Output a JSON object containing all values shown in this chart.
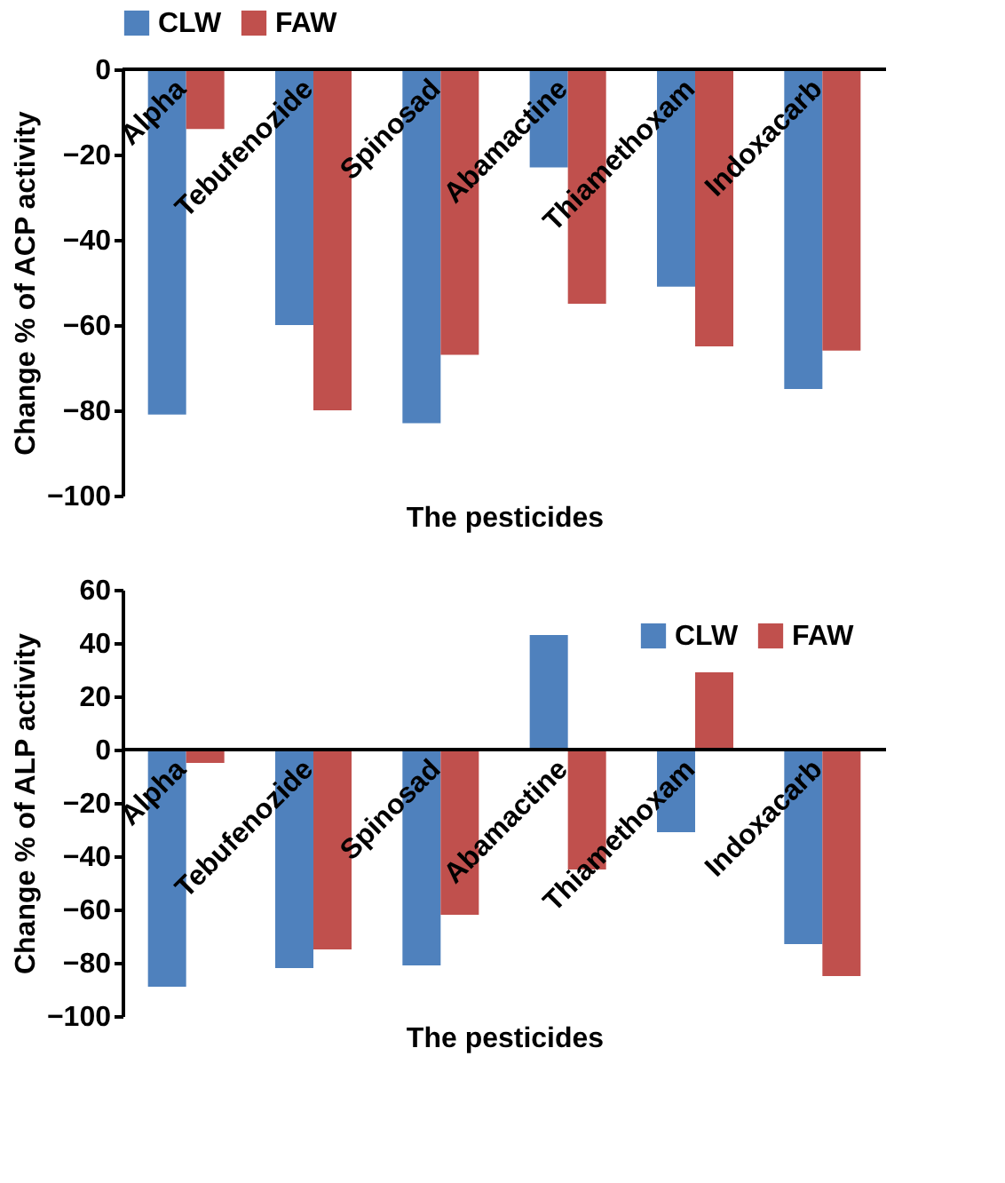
{
  "chart_data": [
    {
      "type": "bar",
      "xlabel": "The pesticides",
      "ylabel": "Change % of ACP activity",
      "categories": [
        "Alpha",
        "Tebufenozide",
        "Spinosad",
        "Abamactine",
        "Thiamethoxam",
        "Indoxacarb"
      ],
      "series": [
        {
          "name": "CLW",
          "color": "#4f81bd",
          "values": [
            -81,
            -60,
            -83,
            -23,
            -51,
            -75
          ]
        },
        {
          "name": "FAW",
          "color": "#c0504d",
          "values": [
            -14,
            -80,
            -67,
            -55,
            -65,
            -66
          ]
        }
      ],
      "ylim": [
        -100,
        0
      ],
      "yticks": [
        -100,
        -80,
        -60,
        -40,
        -20,
        0
      ],
      "legend": "top"
    },
    {
      "type": "bar",
      "xlabel": "The pesticides",
      "ylabel": "Change % of ALP activity",
      "categories": [
        "Alpha",
        "Tebufenozide",
        "Spinosad",
        "Abamactine",
        "Thiamethoxam",
        "Indoxacarb"
      ],
      "series": [
        {
          "name": "CLW",
          "color": "#4f81bd",
          "values": [
            -89,
            -82,
            -81,
            43,
            -31,
            -73
          ]
        },
        {
          "name": "FAW",
          "color": "#c0504d",
          "values": [
            -5,
            -75,
            -62,
            -45,
            29,
            -85
          ]
        }
      ],
      "ylim": [
        -100,
        60
      ],
      "yticks": [
        -100,
        -80,
        -60,
        -40,
        -20,
        0,
        20,
        40,
        60
      ],
      "legend": "top right"
    }
  ]
}
